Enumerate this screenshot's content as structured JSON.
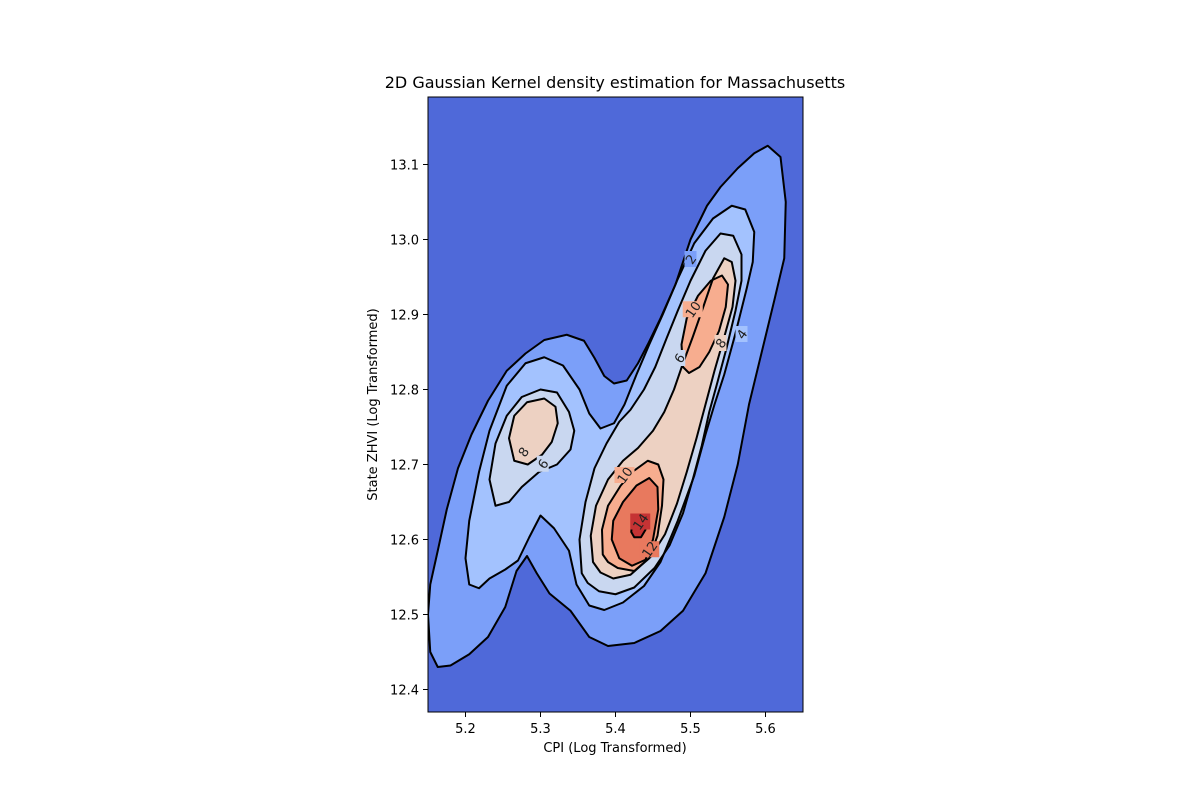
{
  "chart_data": {
    "type": "contourf",
    "title": "2D Gaussian Kernel density estimation for Massachusetts",
    "xlabel": "CPI (Log Transformed)",
    "ylabel": "State ZHVI (Log Transformed)",
    "xlim": [
      5.15,
      5.65
    ],
    "ylim": [
      12.37,
      13.19
    ],
    "x_ticks": [
      "5.2",
      "5.3",
      "5.4",
      "5.5",
      "5.6"
    ],
    "x_tick_values": [
      5.2,
      5.3,
      5.4,
      5.5,
      5.6
    ],
    "y_ticks": [
      "12.4",
      "12.5",
      "12.6",
      "12.7",
      "12.8",
      "12.9",
      "13.0",
      "13.1"
    ],
    "y_tick_values": [
      12.4,
      12.5,
      12.6,
      12.7,
      12.8,
      12.9,
      13.0,
      13.1
    ],
    "colormap": "coolwarm",
    "levels": [
      0,
      2,
      4,
      6,
      8,
      10,
      12,
      14
    ],
    "level_colors": [
      "#4f69d9",
      "#7b9ff9",
      "#a3c2fe",
      "#c9d7f0",
      "#edd1c2",
      "#f7ad8f",
      "#e8795e",
      "#c53334"
    ],
    "contour_labels": [
      {
        "text": "2",
        "x": 5.5,
        "y": 12.974
      },
      {
        "text": "4",
        "x": 5.568,
        "y": 12.874
      },
      {
        "text": "6",
        "x": 5.485,
        "y": 12.842
      },
      {
        "text": "8",
        "x": 5.54,
        "y": 12.862
      },
      {
        "text": "10",
        "x": 5.503,
        "y": 12.907
      },
      {
        "text": "8",
        "x": 5.277,
        "y": 12.717
      },
      {
        "text": "6",
        "x": 5.303,
        "y": 12.701
      },
      {
        "text": "10",
        "x": 5.412,
        "y": 12.686
      },
      {
        "text": "12",
        "x": 5.445,
        "y": 12.587
      },
      {
        "text": "14",
        "x": 5.433,
        "y": 12.624
      }
    ],
    "contours": [
      {
        "level": 2,
        "points": [
          [
            5.15,
            12.5
          ],
          [
            5.153,
            12.45
          ],
          [
            5.163,
            12.43
          ],
          [
            5.18,
            12.432
          ],
          [
            5.205,
            12.447
          ],
          [
            5.23,
            12.47
          ],
          [
            5.253,
            12.51
          ],
          [
            5.268,
            12.558
          ],
          [
            5.282,
            12.578
          ],
          [
            5.295,
            12.555
          ],
          [
            5.312,
            12.528
          ],
          [
            5.34,
            12.505
          ],
          [
            5.365,
            12.47
          ],
          [
            5.39,
            12.458
          ],
          [
            5.425,
            12.462
          ],
          [
            5.46,
            12.478
          ],
          [
            5.49,
            12.505
          ],
          [
            5.52,
            12.555
          ],
          [
            5.545,
            12.63
          ],
          [
            5.563,
            12.7
          ],
          [
            5.578,
            12.78
          ],
          [
            5.595,
            12.85
          ],
          [
            5.612,
            12.92
          ],
          [
            5.625,
            12.975
          ],
          [
            5.627,
            13.05
          ],
          [
            5.62,
            13.11
          ],
          [
            5.603,
            13.125
          ],
          [
            5.585,
            13.115
          ],
          [
            5.563,
            13.095
          ],
          [
            5.54,
            13.07
          ],
          [
            5.522,
            13.045
          ],
          [
            5.5,
            13.0
          ],
          [
            5.48,
            12.94
          ],
          [
            5.46,
            12.895
          ],
          [
            5.443,
            12.86
          ],
          [
            5.43,
            12.835
          ],
          [
            5.415,
            12.812
          ],
          [
            5.398,
            12.808
          ],
          [
            5.385,
            12.818
          ],
          [
            5.372,
            12.842
          ],
          [
            5.358,
            12.865
          ],
          [
            5.335,
            12.873
          ],
          [
            5.305,
            12.866
          ],
          [
            5.28,
            12.848
          ],
          [
            5.255,
            12.825
          ],
          [
            5.23,
            12.785
          ],
          [
            5.208,
            12.74
          ],
          [
            5.19,
            12.695
          ],
          [
            5.175,
            12.64
          ],
          [
            5.163,
            12.585
          ],
          [
            5.153,
            12.54
          ]
        ]
      },
      {
        "level": 4,
        "points": [
          [
            5.205,
            12.54
          ],
          [
            5.2,
            12.575
          ],
          [
            5.205,
            12.625
          ],
          [
            5.218,
            12.69
          ],
          [
            5.232,
            12.745
          ],
          [
            5.255,
            12.805
          ],
          [
            5.28,
            12.835
          ],
          [
            5.305,
            12.843
          ],
          [
            5.33,
            12.832
          ],
          [
            5.352,
            12.8
          ],
          [
            5.365,
            12.768
          ],
          [
            5.38,
            12.748
          ],
          [
            5.398,
            12.755
          ],
          [
            5.412,
            12.78
          ],
          [
            5.428,
            12.82
          ],
          [
            5.445,
            12.86
          ],
          [
            5.463,
            12.9
          ],
          [
            5.482,
            12.945
          ],
          [
            5.505,
            12.995
          ],
          [
            5.53,
            13.028
          ],
          [
            5.555,
            13.045
          ],
          [
            5.573,
            13.04
          ],
          [
            5.585,
            13.01
          ],
          [
            5.583,
            12.97
          ],
          [
            5.575,
            12.935
          ],
          [
            5.56,
            12.875
          ],
          [
            5.545,
            12.82
          ],
          [
            5.532,
            12.78
          ],
          [
            5.52,
            12.74
          ],
          [
            5.505,
            12.685
          ],
          [
            5.483,
            12.625
          ],
          [
            5.46,
            12.57
          ],
          [
            5.438,
            12.538
          ],
          [
            5.41,
            12.516
          ],
          [
            5.385,
            12.506
          ],
          [
            5.365,
            12.512
          ],
          [
            5.348,
            12.54
          ],
          [
            5.338,
            12.585
          ],
          [
            5.318,
            12.615
          ],
          [
            5.3,
            12.632
          ],
          [
            5.285,
            12.603
          ],
          [
            5.27,
            12.572
          ],
          [
            5.253,
            12.56
          ],
          [
            5.232,
            12.548
          ],
          [
            5.218,
            12.535
          ]
        ]
      },
      {
        "level": 6,
        "points": [
          [
            5.24,
            12.645
          ],
          [
            5.232,
            12.68
          ],
          [
            5.24,
            12.728
          ],
          [
            5.255,
            12.765
          ],
          [
            5.275,
            12.79
          ],
          [
            5.3,
            12.8
          ],
          [
            5.322,
            12.796
          ],
          [
            5.338,
            12.77
          ],
          [
            5.345,
            12.745
          ],
          [
            5.34,
            12.72
          ],
          [
            5.322,
            12.7
          ],
          [
            5.298,
            12.69
          ],
          [
            5.275,
            12.67
          ],
          [
            5.258,
            12.65
          ]
        ]
      },
      {
        "level": 6,
        "points": [
          [
            5.355,
            12.555
          ],
          [
            5.352,
            12.6
          ],
          [
            5.36,
            12.65
          ],
          [
            5.372,
            12.695
          ],
          [
            5.388,
            12.728
          ],
          [
            5.405,
            12.757
          ],
          [
            5.42,
            12.773
          ],
          [
            5.438,
            12.8
          ],
          [
            5.453,
            12.83
          ],
          [
            5.468,
            12.868
          ],
          [
            5.483,
            12.905
          ],
          [
            5.5,
            12.945
          ],
          [
            5.52,
            12.985
          ],
          [
            5.54,
            13.008
          ],
          [
            5.557,
            13.005
          ],
          [
            5.568,
            12.98
          ],
          [
            5.568,
            12.945
          ],
          [
            5.56,
            12.905
          ],
          [
            5.548,
            12.855
          ],
          [
            5.536,
            12.81
          ],
          [
            5.525,
            12.77
          ],
          [
            5.515,
            12.725
          ],
          [
            5.503,
            12.68
          ],
          [
            5.49,
            12.635
          ],
          [
            5.472,
            12.592
          ],
          [
            5.452,
            12.562
          ],
          [
            5.425,
            12.536
          ],
          [
            5.4,
            12.527
          ],
          [
            5.378,
            12.531
          ],
          [
            5.363,
            12.542
          ]
        ]
      },
      {
        "level": 8,
        "points": [
          [
            5.265,
            12.705
          ],
          [
            5.258,
            12.735
          ],
          [
            5.265,
            12.765
          ],
          [
            5.282,
            12.783
          ],
          [
            5.305,
            12.788
          ],
          [
            5.32,
            12.777
          ],
          [
            5.323,
            12.755
          ],
          [
            5.315,
            12.73
          ],
          [
            5.302,
            12.713
          ],
          [
            5.283,
            12.7
          ]
        ]
      },
      {
        "level": 8,
        "points": [
          [
            5.37,
            12.57
          ],
          [
            5.367,
            12.605
          ],
          [
            5.374,
            12.645
          ],
          [
            5.39,
            12.68
          ],
          [
            5.41,
            12.705
          ],
          [
            5.43,
            12.722
          ],
          [
            5.45,
            12.745
          ],
          [
            5.465,
            12.77
          ],
          [
            5.478,
            12.8
          ],
          [
            5.49,
            12.835
          ],
          [
            5.503,
            12.87
          ],
          [
            5.517,
            12.91
          ],
          [
            5.53,
            12.948
          ],
          [
            5.545,
            12.975
          ],
          [
            5.555,
            12.97
          ],
          [
            5.56,
            12.945
          ],
          [
            5.556,
            12.91
          ],
          [
            5.545,
            12.87
          ],
          [
            5.532,
            12.825
          ],
          [
            5.52,
            12.78
          ],
          [
            5.508,
            12.735
          ],
          [
            5.495,
            12.69
          ],
          [
            5.482,
            12.648
          ],
          [
            5.466,
            12.607
          ],
          [
            5.447,
            12.577
          ],
          [
            5.42,
            12.553
          ],
          [
            5.397,
            12.548
          ],
          [
            5.38,
            12.556
          ]
        ]
      },
      {
        "level": 10,
        "points": [
          [
            5.383,
            12.58
          ],
          [
            5.382,
            12.613
          ],
          [
            5.39,
            12.645
          ],
          [
            5.407,
            12.672
          ],
          [
            5.425,
            12.692
          ],
          [
            5.443,
            12.705
          ],
          [
            5.457,
            12.7
          ],
          [
            5.464,
            12.68
          ],
          [
            5.462,
            12.645
          ],
          [
            5.456,
            12.605
          ],
          [
            5.445,
            12.575
          ],
          [
            5.425,
            12.558
          ],
          [
            5.403,
            12.562
          ],
          [
            5.39,
            12.57
          ]
        ]
      },
      {
        "level": 10,
        "points": [
          [
            5.49,
            12.83
          ],
          [
            5.488,
            12.86
          ],
          [
            5.495,
            12.895
          ],
          [
            5.51,
            12.925
          ],
          [
            5.527,
            12.945
          ],
          [
            5.542,
            12.952
          ],
          [
            5.55,
            12.94
          ],
          [
            5.547,
            12.91
          ],
          [
            5.538,
            12.878
          ],
          [
            5.525,
            12.85
          ],
          [
            5.512,
            12.83
          ],
          [
            5.498,
            12.822
          ]
        ]
      },
      {
        "level": 12,
        "points": [
          [
            5.395,
            12.6
          ],
          [
            5.397,
            12.625
          ],
          [
            5.41,
            12.65
          ],
          [
            5.428,
            12.672
          ],
          [
            5.445,
            12.682
          ],
          [
            5.456,
            12.67
          ],
          [
            5.457,
            12.64
          ],
          [
            5.45,
            12.6
          ],
          [
            5.44,
            12.573
          ],
          [
            5.422,
            12.565
          ],
          [
            5.405,
            12.575
          ]
        ]
      },
      {
        "level": 14,
        "points": [
          [
            5.421,
            12.61
          ],
          [
            5.422,
            12.622
          ],
          [
            5.43,
            12.628
          ],
          [
            5.438,
            12.625
          ],
          [
            5.44,
            12.613
          ],
          [
            5.434,
            12.603
          ],
          [
            5.425,
            12.603
          ]
        ]
      }
    ]
  }
}
